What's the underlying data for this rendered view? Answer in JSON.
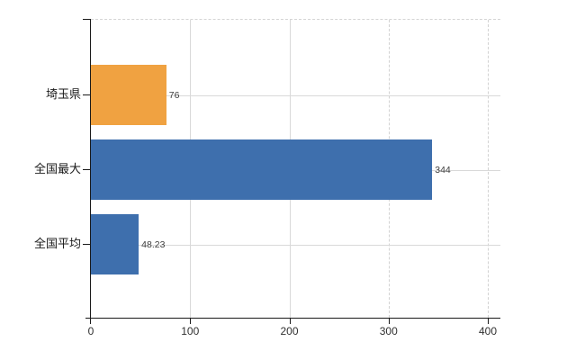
{
  "chart_data": {
    "type": "bar",
    "orientation": "horizontal",
    "categories": [
      "埼玉県",
      "全国最大",
      "全国平均"
    ],
    "values": [
      76,
      344,
      48.23
    ],
    "value_labels": [
      "76",
      "344",
      "48.23"
    ],
    "bar_colors": [
      "#f0a241",
      "#3e6fad",
      "#3e6fad"
    ],
    "x_ticks": [
      0,
      100,
      200,
      300,
      400
    ],
    "x_tick_labels": [
      "0",
      "100",
      "200",
      "300",
      "400"
    ],
    "xlim": [
      0,
      412
    ],
    "grid": true,
    "legend": "none",
    "title": "",
    "xlabel": "",
    "ylabel": ""
  },
  "colors": {
    "background": "#ffffff",
    "grid": "#d9d9d9",
    "axis": "#1a1a1a",
    "tick_label": "#303030",
    "value_label": "#3d3d3d",
    "bar_orange": "#f0a241",
    "bar_blue": "#3e6fad"
  }
}
